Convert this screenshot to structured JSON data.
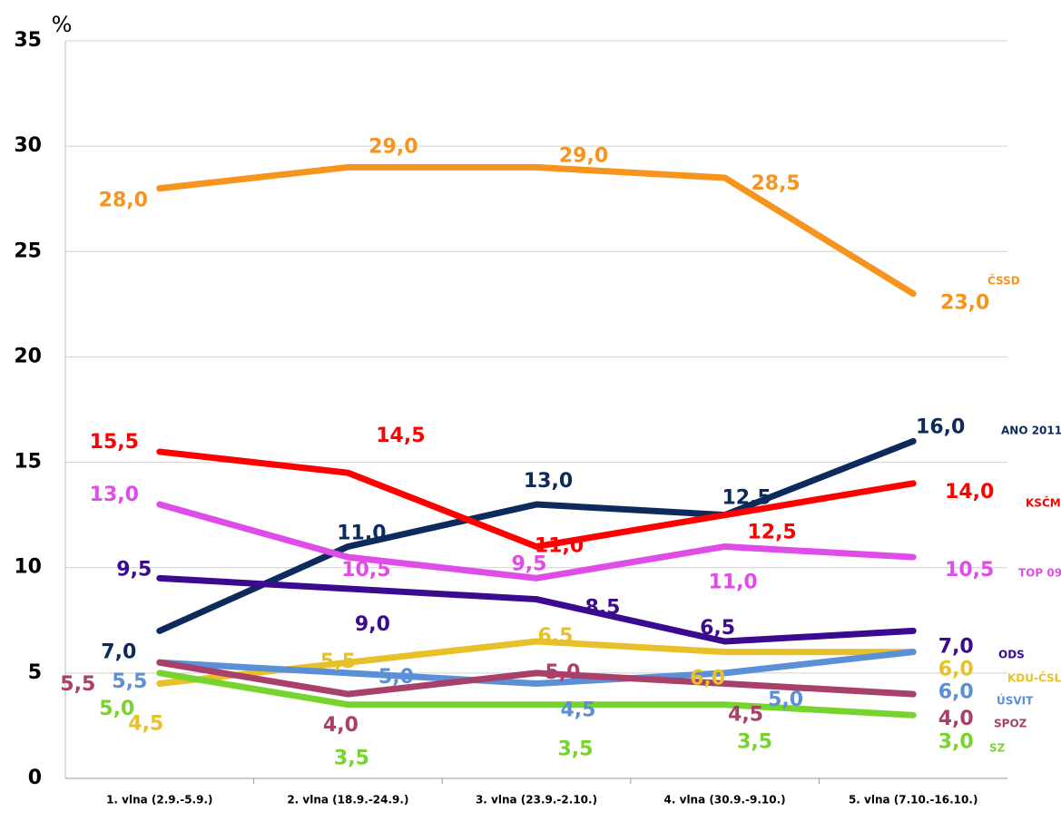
{
  "chart_data": {
    "type": "line",
    "y_unit": "%",
    "categories": [
      "1. vlna (2.9.-5.9.)",
      "2. vlna (18.9.-24.9.)",
      "3. vlna (23.9.-2.10.)",
      "4. vlna (30.9.-9.10.)",
      "5. vlna (7.10.-16.10.)"
    ],
    "ylim": [
      0,
      35
    ],
    "yticks": [
      0,
      5,
      10,
      15,
      20,
      25,
      30,
      35
    ],
    "grid": true,
    "series": [
      {
        "name": "ČSSD",
        "color": "#f7941d",
        "values": [
          28.0,
          29.0,
          29.0,
          28.5,
          23.0
        ],
        "value_labels": [
          "28,0",
          "29,0",
          "29,0",
          "28,5",
          "23,0"
        ]
      },
      {
        "name": "ANO 2011",
        "color": "#0d2a5c",
        "values": [
          7.0,
          11.0,
          13.0,
          12.5,
          16.0
        ],
        "value_labels": [
          "7,0",
          "11,0",
          "13,0",
          "12,5",
          "16,0"
        ]
      },
      {
        "name": "KSČM",
        "color": "#ff0000",
        "values": [
          15.5,
          14.5,
          11.0,
          12.5,
          14.0
        ],
        "value_labels": [
          "15,5",
          "14,5",
          "11,0",
          "12,5",
          "14,0"
        ]
      },
      {
        "name": "TOP 09",
        "color": "#e04ce8",
        "values": [
          13.0,
          10.5,
          9.5,
          11.0,
          10.5
        ],
        "value_labels": [
          "13,0",
          "10,5",
          "9,5",
          "11,0",
          "10,5"
        ]
      },
      {
        "name": "ODS",
        "color": "#3a0a8f",
        "values": [
          9.5,
          9.0,
          8.5,
          6.5,
          7.0
        ],
        "value_labels": [
          "9,5",
          "9,0",
          "8,5",
          "6,5",
          "7,0"
        ]
      },
      {
        "name": "KDU-ČSL",
        "color": "#e8c12a",
        "values": [
          4.5,
          5.5,
          6.5,
          6.0,
          6.0
        ],
        "value_labels": [
          "4,5",
          "5,5",
          "6,5",
          "6,0",
          "6,0"
        ]
      },
      {
        "name": "ÚSVIT",
        "color": "#5b8fd6",
        "values": [
          5.5,
          5.0,
          4.5,
          5.0,
          6.0
        ],
        "value_labels": [
          "5,5",
          "5,0",
          "4,5",
          "5,0",
          "6,0"
        ]
      },
      {
        "name": "SPOZ",
        "color": "#a8406a",
        "values": [
          5.5,
          4.0,
          5.0,
          4.5,
          4.0
        ],
        "value_labels": [
          "5,5",
          "4,0",
          "5,0",
          "4,5",
          "4,0"
        ]
      },
      {
        "name": "SZ",
        "color": "#77d42e",
        "values": [
          5.0,
          3.5,
          3.5,
          3.5,
          3.0
        ],
        "value_labels": [
          "5,0",
          "3,5",
          "3,5",
          "3,5",
          "3,0"
        ]
      }
    ]
  }
}
